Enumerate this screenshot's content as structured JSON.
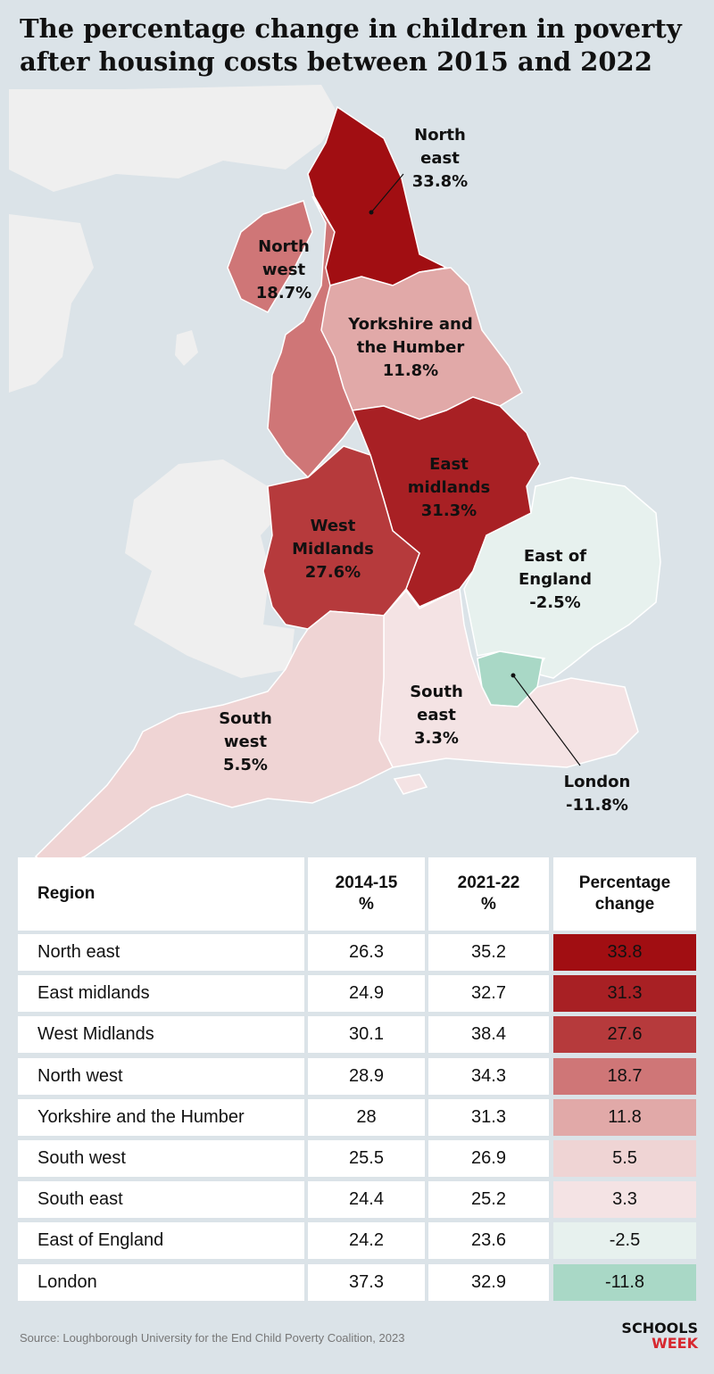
{
  "title": "The percentage change in children in poverty after housing costs between 2015 and 2022",
  "map_labels": {
    "north_east": {
      "name_l1": "North",
      "name_l2": "east",
      "value": "33.8%"
    },
    "north_west": {
      "name_l1": "North",
      "name_l2": "west",
      "value": "18.7%"
    },
    "yorkshire": {
      "name_l1": "Yorkshire and",
      "name_l2": "the Humber",
      "value": "11.8%"
    },
    "east_midlands": {
      "name_l1": "East",
      "name_l2": "midlands",
      "value": "31.3%"
    },
    "west_midlands": {
      "name_l1": "West",
      "name_l2": "Midlands",
      "value": "27.6%"
    },
    "east_of_england": {
      "name_l1": "East of",
      "name_l2": "England",
      "value": "-2.5%"
    },
    "south_east": {
      "name_l1": "South",
      "name_l2": "east",
      "value": "3.3%"
    },
    "south_west": {
      "name_l1": "South",
      "name_l2": "west",
      "value": "5.5%"
    },
    "london": {
      "name_l1": "London",
      "value": "-11.8%"
    }
  },
  "colors": {
    "north_east": "#a10e12",
    "east_midlands": "#a82024",
    "west_midlands": "#b63a3c",
    "north_west": "#cf7677",
    "yorkshire": "#e1a9a8",
    "south_west": "#efd4d4",
    "south_east": "#f4e3e4",
    "east_of_england": "#e7f1ee",
    "london": "#a9d8c6"
  },
  "table": {
    "headers": {
      "region": "Region",
      "y2015_l1": "2014-15",
      "y2015_l2": "%",
      "y2022_l1": "2021-22",
      "y2022_l2": "%",
      "change_l1": "Percentage",
      "change_l2": "change"
    },
    "rows": [
      {
        "region": "North east",
        "y2015": "26.3",
        "y2022": "35.2",
        "change": "33.8"
      },
      {
        "region": "East midlands",
        "y2015": "24.9",
        "y2022": "32.7",
        "change": "31.3"
      },
      {
        "region": "West Midlands",
        "y2015": "30.1",
        "y2022": "38.4",
        "change": "27.6"
      },
      {
        "region": "North west",
        "y2015": "28.9",
        "y2022": "34.3",
        "change": "18.7"
      },
      {
        "region": "Yorkshire and the Humber",
        "y2015": "28",
        "y2022": "31.3",
        "change": "11.8"
      },
      {
        "region": "South west",
        "y2015": "25.5",
        "y2022": "26.9",
        "change": "5.5"
      },
      {
        "region": "South east",
        "y2015": "24.4",
        "y2022": "25.2",
        "change": "3.3"
      },
      {
        "region": "East of England",
        "y2015": "24.2",
        "y2022": "23.6",
        "change": "-2.5"
      },
      {
        "region": "London",
        "y2015": "37.3",
        "y2022": "32.9",
        "change": "-11.8"
      }
    ]
  },
  "source": "Source: Loughborough University for the End Child Poverty Coalition, 2023",
  "logo": {
    "line1": "SCHOOLS",
    "line2": "WEEK"
  }
}
